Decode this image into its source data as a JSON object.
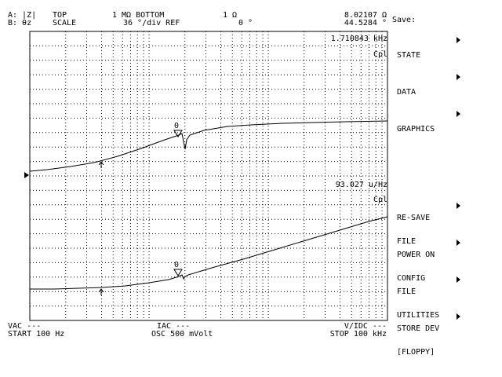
{
  "header": {
    "trace_a": "A: |Z|",
    "trace_b": "B: θz",
    "top_label": "TOP",
    "scale_label": "SCALE",
    "top_value": "1 MΩ BOTTOM",
    "scale_value": "36 °/div REF",
    "bottom_value": "1 Ω",
    "ref_value": "0 °",
    "marker_a_value": "8.02107 Ω",
    "marker_b_value": "44.5284 °"
  },
  "menu": {
    "title": "Save:",
    "items": [
      {
        "line1": "STATE",
        "line2": ""
      },
      {
        "line1": "DATA",
        "line2": ""
      },
      {
        "line1": "GRAPHICS",
        "line2": ""
      },
      {
        "line1": "RE-SAVE",
        "line2": "FILE"
      },
      {
        "line1": "POWER ON",
        "line2": "CONFIG"
      },
      {
        "line1": "FILE",
        "line2": "UTILITIES"
      },
      {
        "line1": "STORE DEV",
        "line2": "[FLOPPY]"
      }
    ]
  },
  "plot": {
    "upper_marker_freq": "1.710843 kHz",
    "upper_mode": "Cpl",
    "lower_marker_value": "93.027 u/Hz",
    "lower_mode": "Cpl",
    "marker_label_upper": "0",
    "marker_label_lower": "0"
  },
  "footer": {
    "vac": "VAC ---",
    "iac": "IAC ---",
    "vidc": "V/IDC ---",
    "start": "START 100 Hz",
    "osc": "OSC 500 mVolt",
    "stop": "STOP 100 kHz"
  }
}
